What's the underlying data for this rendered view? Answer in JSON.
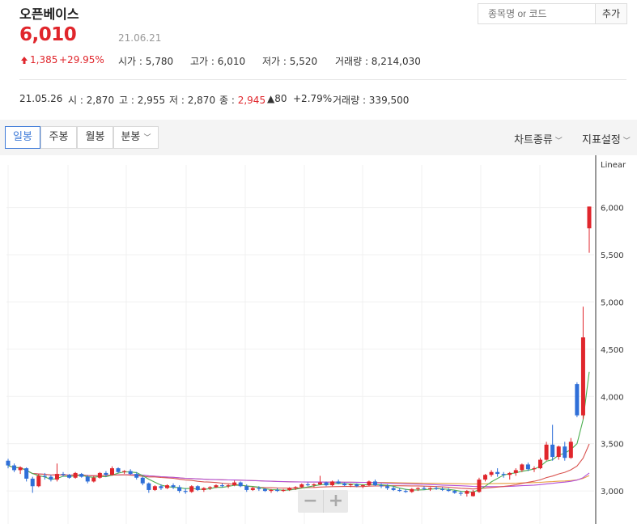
{
  "stock": {
    "name": "오픈베이스",
    "price": "6,010",
    "date": "21.06.21",
    "change": "1,385",
    "change_pct": "+29.95%",
    "open_label": "시가",
    "open": "5,780",
    "high_label": "고가",
    "high": "6,010",
    "low_label": "저가",
    "low": "5,520",
    "volume_label": "거래량",
    "volume": "8,214,030"
  },
  "prev_day": {
    "date": "21.05.26",
    "open_label": "시",
    "open": "2,870",
    "high_label": "고",
    "high": "2,955",
    "low_label": "저",
    "low": "2,870",
    "close_label": "종",
    "close": "2,945",
    "change": "80",
    "change_pct": "+2.79%",
    "volume_label": "거래량",
    "volume": "339,500"
  },
  "search": {
    "placeholder": "종목명 or 코드",
    "add_label": "추가"
  },
  "toolbar": {
    "tabs": [
      "일봉",
      "주봉",
      "월봉",
      "분봉"
    ],
    "active_tab": "일봉",
    "chart_type_label": "차트종류",
    "indicator_label": "지표설정"
  },
  "colors": {
    "up": "#e0262c",
    "down": "#2f6fd8",
    "ma5": "#4caf50",
    "ma20": "#d9534f",
    "ma60": "#b24fd8",
    "ma120": "#e8a040"
  },
  "zoom": {
    "minus": "−",
    "plus": "+"
  },
  "chart_data": {
    "type": "candlestick",
    "scale": "Linear",
    "y_ticks": [
      "6,000",
      "5,500",
      "5,000",
      "4,500",
      "4,000",
      "3,500",
      "3,000"
    ],
    "ylim": [
      2650,
      6450
    ],
    "candles": [
      [
        3320,
        3340,
        3240,
        3270
      ],
      [
        3270,
        3290,
        3200,
        3220
      ],
      [
        3220,
        3260,
        3180,
        3250
      ],
      [
        3240,
        3250,
        3100,
        3130
      ],
      [
        3130,
        3150,
        2980,
        3050
      ],
      [
        3050,
        3180,
        3040,
        3160
      ],
      [
        3160,
        3190,
        3120,
        3150
      ],
      [
        3150,
        3170,
        3100,
        3120
      ],
      [
        3120,
        3290,
        3100,
        3180
      ],
      [
        3180,
        3200,
        3150,
        3170
      ],
      [
        3170,
        3180,
        3130,
        3140
      ],
      [
        3140,
        3200,
        3130,
        3190
      ],
      [
        3180,
        3190,
        3140,
        3150
      ],
      [
        3150,
        3170,
        3080,
        3100
      ],
      [
        3100,
        3160,
        3090,
        3140
      ],
      [
        3140,
        3200,
        3130,
        3190
      ],
      [
        3190,
        3210,
        3150,
        3170
      ],
      [
        3170,
        3260,
        3160,
        3240
      ],
      [
        3240,
        3250,
        3190,
        3200
      ],
      [
        3200,
        3220,
        3180,
        3210
      ],
      [
        3210,
        3230,
        3170,
        3180
      ],
      [
        3180,
        3200,
        3120,
        3140
      ],
      [
        3140,
        3150,
        3060,
        3080
      ],
      [
        3080,
        3090,
        2980,
        3010
      ],
      [
        3010,
        3060,
        3000,
        3050
      ],
      [
        3050,
        3070,
        3010,
        3030
      ],
      [
        3030,
        3070,
        3020,
        3060
      ],
      [
        3060,
        3080,
        3020,
        3040
      ],
      [
        3040,
        3060,
        2980,
        3000
      ],
      [
        3000,
        3030,
        2970,
        2990
      ],
      [
        2990,
        3060,
        2980,
        3050
      ],
      [
        3050,
        3060,
        3000,
        3010
      ],
      [
        3010,
        3040,
        2990,
        3030
      ],
      [
        3030,
        3050,
        3010,
        3040
      ],
      [
        3040,
        3070,
        3030,
        3060
      ],
      [
        3060,
        3080,
        3040,
        3050
      ],
      [
        3050,
        3070,
        3030,
        3060
      ],
      [
        3060,
        3110,
        3050,
        3090
      ],
      [
        3090,
        3100,
        3040,
        3050
      ],
      [
        3050,
        3070,
        2990,
        3010
      ],
      [
        3010,
        3040,
        3000,
        3030
      ],
      [
        3030,
        3050,
        3000,
        3020
      ],
      [
        3020,
        3030,
        2990,
        3000
      ],
      [
        3000,
        3020,
        2980,
        3010
      ],
      [
        3010,
        3030,
        2990,
        3000
      ],
      [
        3000,
        3020,
        2990,
        3010
      ],
      [
        3010,
        3040,
        3000,
        3030
      ],
      [
        3030,
        3050,
        3010,
        3040
      ],
      [
        3040,
        3080,
        3030,
        3070
      ],
      [
        3070,
        3090,
        3050,
        3060
      ],
      [
        3060,
        3080,
        3040,
        3070
      ],
      [
        3070,
        3160,
        3060,
        3090
      ],
      [
        3090,
        3100,
        3050,
        3060
      ],
      [
        3060,
        3110,
        3050,
        3100
      ],
      [
        3100,
        3120,
        3070,
        3080
      ],
      [
        3080,
        3090,
        3050,
        3060
      ],
      [
        3060,
        3080,
        3040,
        3070
      ],
      [
        3070,
        3080,
        3040,
        3050
      ],
      [
        3050,
        3070,
        3030,
        3060
      ],
      [
        3060,
        3110,
        3050,
        3100
      ],
      [
        3100,
        3120,
        3050,
        3060
      ],
      [
        3060,
        3080,
        3030,
        3050
      ],
      [
        3050,
        3070,
        3010,
        3030
      ],
      [
        3030,
        3050,
        3000,
        3010
      ],
      [
        3010,
        3030,
        2990,
        3000
      ],
      [
        3000,
        3020,
        2980,
        2990
      ],
      [
        2990,
        3030,
        2980,
        3020
      ],
      [
        3020,
        3040,
        3000,
        3030
      ],
      [
        3030,
        3050,
        3010,
        3020
      ],
      [
        3020,
        3040,
        3000,
        3030
      ],
      [
        3030,
        3050,
        3010,
        3020
      ],
      [
        3020,
        3040,
        3000,
        3010
      ],
      [
        3010,
        3030,
        2990,
        3000
      ],
      [
        3000,
        3010,
        2970,
        2980
      ],
      [
        2980,
        3000,
        2950,
        2970
      ],
      [
        2970,
        3010,
        2940,
        3000
      ],
      [
        2945,
        3010,
        2940,
        2990
      ],
      [
        2990,
        3140,
        2980,
        3120
      ],
      [
        3120,
        3180,
        3100,
        3170
      ],
      [
        3170,
        3220,
        3150,
        3200
      ],
      [
        3200,
        3240,
        3150,
        3180
      ],
      [
        3180,
        3200,
        3140,
        3170
      ],
      [
        3170,
        3200,
        3120,
        3190
      ],
      [
        3190,
        3240,
        3160,
        3220
      ],
      [
        3220,
        3290,
        3200,
        3280
      ],
      [
        3280,
        3300,
        3210,
        3230
      ],
      [
        3230,
        3260,
        3200,
        3240
      ],
      [
        3240,
        3350,
        3230,
        3330
      ],
      [
        3330,
        3520,
        3320,
        3490
      ],
      [
        3490,
        3700,
        3320,
        3360
      ],
      [
        3360,
        3480,
        3330,
        3470
      ],
      [
        3470,
        3520,
        3320,
        3350
      ],
      [
        3350,
        3560,
        3340,
        3520
      ],
      [
        4130,
        4150,
        3780,
        3800
      ],
      [
        3800,
        4950,
        3760,
        4625
      ],
      [
        5780,
        6010,
        5520,
        6010
      ]
    ]
  }
}
